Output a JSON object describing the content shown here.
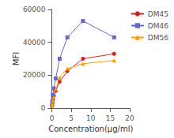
{
  "chart_data": {
    "type": "line",
    "xlabel": "Concentration(μg/ml)",
    "ylabel": "MFI",
    "x": [
      0.063,
      0.125,
      0.25,
      0.5,
      1,
      2,
      4,
      8,
      16
    ],
    "series": [
      {
        "name": "DM45",
        "color": "#CC2222",
        "marker": "circle",
        "values": [
          1500,
          3000,
          5000,
          7500,
          10500,
          16000,
          22500,
          30000,
          33000
        ]
      },
      {
        "name": "DM46",
        "color": "#6666CC",
        "marker": "square",
        "values": [
          1500,
          4000,
          8000,
          12000,
          18000,
          30000,
          43000,
          53000,
          43000
        ]
      },
      {
        "name": "DM56",
        "color": "#FF9900",
        "marker": "triangle",
        "values": [
          1500,
          2500,
          4500,
          6500,
          11500,
          18500,
          24000,
          27000,
          29000
        ]
      }
    ],
    "xlim": [
      0,
      20
    ],
    "xticks": [
      0,
      5,
      10,
      15,
      20
    ],
    "ylim": [
      0,
      60000
    ],
    "yticks": [
      0,
      20000,
      40000,
      60000
    ],
    "grid": false,
    "legend": "right"
  }
}
